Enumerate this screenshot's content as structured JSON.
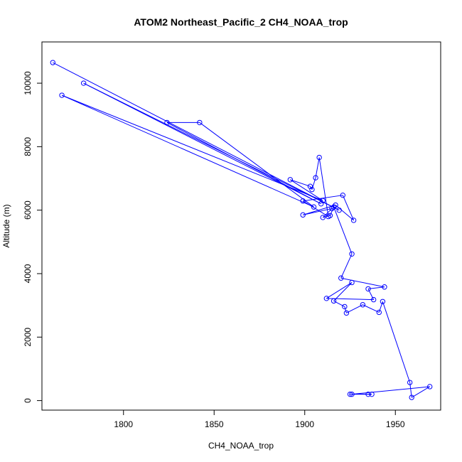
{
  "chart_data": {
    "type": "line",
    "title": "ATOM2 Northeast_Pacific_2 CH4_NOAA_trop",
    "xlabel": "CH4_NOAA_trop",
    "ylabel": "Altitude (m)",
    "xlim": [
      1755,
      1975
    ],
    "ylim": [
      -300,
      11300
    ],
    "xticks": [
      1800,
      1850,
      1900,
      1950
    ],
    "yticks": [
      0,
      2000,
      4000,
      6000,
      8000,
      10000
    ],
    "grid": false,
    "color": "#0000ff",
    "series": [
      {
        "points": [
          [
            1761,
            10650
          ],
          [
            1919,
            6000
          ],
          [
            1778,
            10000
          ],
          [
            1909,
            6200
          ],
          [
            1824,
            8760
          ],
          [
            1842,
            8760
          ],
          [
            1905,
            6100
          ],
          [
            1766,
            9620
          ],
          [
            1910,
            6300
          ],
          [
            1892,
            6960
          ],
          [
            1903,
            6750
          ],
          [
            1904,
            6650
          ],
          [
            1906,
            7020
          ],
          [
            1908,
            7660
          ],
          [
            1913,
            5800
          ],
          [
            1899,
            6290
          ],
          [
            1921,
            6470
          ],
          [
            1927,
            5680
          ],
          [
            1917,
            6160
          ],
          [
            1899,
            5850
          ],
          [
            1915,
            6050
          ],
          [
            1910,
            5770
          ],
          [
            1914,
            5830
          ],
          [
            1916,
            6100
          ],
          [
            1926,
            4620
          ],
          [
            1920,
            3860
          ],
          [
            1944,
            3580
          ],
          [
            1935,
            3520
          ],
          [
            1938,
            3180
          ],
          [
            1912,
            3220
          ],
          [
            1926,
            3720
          ],
          [
            1916,
            3140
          ],
          [
            1922,
            2960
          ],
          [
            1923,
            2760
          ],
          [
            1932,
            3020
          ],
          [
            1941,
            2780
          ],
          [
            1943,
            3120
          ],
          [
            1958,
            570
          ],
          [
            1959,
            100
          ],
          [
            1969,
            440
          ],
          [
            1926,
            200
          ],
          [
            1937,
            200
          ],
          [
            1935,
            200
          ],
          [
            1925,
            200
          ]
        ]
      }
    ]
  }
}
